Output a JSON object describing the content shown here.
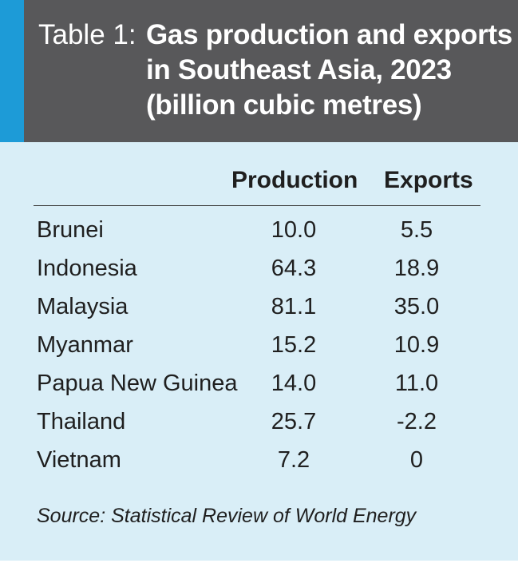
{
  "header": {
    "prefix": "Table 1:",
    "title_lines": [
      "Gas production and exports",
      "in Southeast Asia, 2023",
      "(billion cubic metres)"
    ]
  },
  "columns": {
    "production": "Production",
    "exports": "Exports"
  },
  "rows": [
    {
      "country": "Brunei",
      "production": "10.0",
      "exports": "5.5"
    },
    {
      "country": "Indonesia",
      "production": "64.3",
      "exports": "18.9"
    },
    {
      "country": "Malaysia",
      "production": "81.1",
      "exports": "35.0"
    },
    {
      "country": "Myanmar",
      "production": "15.2",
      "exports": "10.9"
    },
    {
      "country": "Papua New Guinea",
      "production": "14.0",
      "exports": "11.0"
    },
    {
      "country": "Thailand",
      "production": "25.7",
      "exports": "-2.2"
    },
    {
      "country": "Vietnam",
      "production": "7.2",
      "exports": "0"
    }
  ],
  "source": "Source: Statistical Review of World Energy",
  "colors": {
    "header_bg": "#58585a",
    "accent": "#1d9bd7",
    "panel_bg": "#d9eef7"
  }
}
